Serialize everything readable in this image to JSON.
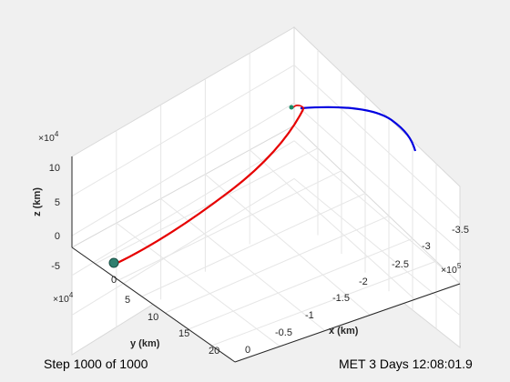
{
  "status": {
    "step_text": "Step 1000 of 1000",
    "met_text": "MET  3 Days 12:08:01.9"
  },
  "axes": {
    "z": {
      "label": "z (km)",
      "exponent": "×10",
      "exponent_power": "4",
      "ticks": [
        "10",
        "5",
        "0",
        "-5"
      ]
    },
    "y": {
      "label": "y (km)",
      "exponent": "×10",
      "exponent_power": "4",
      "ticks": [
        "0",
        "5",
        "10",
        "15",
        "20"
      ]
    },
    "x": {
      "label": "x (km)",
      "exponent": "×10",
      "exponent_power": "5",
      "ticks": [
        "0",
        "-0.5",
        "-1",
        "-1.5",
        "-2",
        "-2.5",
        "-3",
        "-3.5"
      ]
    }
  },
  "colors": {
    "figure_bg": "#f0f0f0",
    "axes_bg": "#ffffff",
    "grid": "#e6e6e6",
    "box": "#d9d9d9",
    "trajectory": "#e60000",
    "moon_path": "#0000e0",
    "earth": "#2f7f6f",
    "spacecraft": "#1a8a66"
  },
  "chart_data": {
    "type": "line",
    "series": [
      {
        "role": "spacecraft-trajectory",
        "color": "#e60000"
      },
      {
        "role": "moon-orbit-arc",
        "color": "#0000e0"
      }
    ],
    "zlim": [
      -7,
      12
    ],
    "z_tick_values": [
      10,
      5,
      0,
      -5
    ],
    "y_tick_values": [
      0,
      5,
      10,
      15,
      20
    ],
    "x_tick_values": [
      0,
      -0.5,
      -1,
      -1.5,
      -2,
      -2.5,
      -3,
      -3.5
    ],
    "grid": true
  }
}
